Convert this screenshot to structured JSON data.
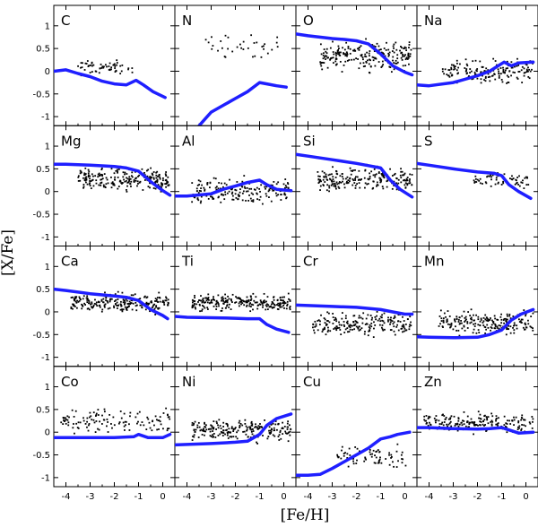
{
  "figure": {
    "xlabel": "[Fe/H]",
    "ylabel": "[X/Fe]",
    "model_color": "#1f1fff",
    "point_color": "#000000"
  },
  "chart_data": {
    "type": "scatter",
    "xlim": [
      -4.5,
      0.5
    ],
    "ylim": [
      -1.2,
      1.45
    ],
    "xticks": [
      "-4",
      "-3",
      "-2",
      "-1",
      "0"
    ],
    "xtick_values": [
      -4,
      -3,
      -2,
      -1,
      0
    ],
    "yticks": [
      "-1",
      "-0.5",
      "0",
      "0.5",
      "1"
    ],
    "ytick_values": [
      -1,
      -0.5,
      0,
      0.5,
      1
    ],
    "panels": [
      {
        "element": "C",
        "model": [
          [
            -4.5,
            0.0
          ],
          [
            -4,
            0.03
          ],
          [
            -3.5,
            -0.05
          ],
          [
            -3,
            -0.12
          ],
          [
            -2.5,
            -0.22
          ],
          [
            -2,
            -0.28
          ],
          [
            -1.5,
            -0.3
          ],
          [
            -1.1,
            -0.2
          ],
          [
            -0.8,
            -0.3
          ],
          [
            -0.4,
            -0.45
          ],
          [
            0.1,
            -0.58
          ]
        ],
        "obs": {
          "x": [
            -3.6,
            -1.2
          ],
          "y": [
            -0.15,
            0.3
          ],
          "n": 60
        }
      },
      {
        "element": "N",
        "model": [
          [
            -3.5,
            -1.2
          ],
          [
            -3,
            -0.9
          ],
          [
            -2.5,
            -0.75
          ],
          [
            -2,
            -0.6
          ],
          [
            -1.5,
            -0.45
          ],
          [
            -1,
            -0.25
          ],
          [
            -0.7,
            -0.28
          ],
          [
            -0.3,
            -0.32
          ],
          [
            0.1,
            -0.35
          ]
        ],
        "obs": {
          "x": [
            -3.3,
            -0.2
          ],
          "y": [
            0.2,
            0.9
          ],
          "n": 35
        }
      },
      {
        "element": "O",
        "model": [
          [
            -4.5,
            0.82
          ],
          [
            -4,
            0.78
          ],
          [
            -3,
            0.72
          ],
          [
            -2.5,
            0.7
          ],
          [
            -2,
            0.67
          ],
          [
            -1.5,
            0.6
          ],
          [
            -1,
            0.38
          ],
          [
            -0.5,
            0.12
          ],
          [
            0,
            -0.02
          ],
          [
            0.3,
            -0.08
          ]
        ],
        "obs": {
          "x": [
            -3.5,
            0.3
          ],
          "y": [
            -0.1,
            0.8
          ],
          "n": 220
        }
      },
      {
        "element": "Na",
        "model": [
          [
            -4.5,
            -0.3
          ],
          [
            -4,
            -0.32
          ],
          [
            -3,
            -0.25
          ],
          [
            -2,
            -0.1
          ],
          [
            -1.5,
            0.0
          ],
          [
            -1.2,
            0.1
          ],
          [
            -0.9,
            0.2
          ],
          [
            -0.6,
            0.12
          ],
          [
            -0.3,
            0.18
          ],
          [
            0.3,
            0.2
          ]
        ],
        "obs": {
          "x": [
            -3.5,
            0.3
          ],
          "y": [
            -0.35,
            0.35
          ],
          "n": 160
        }
      },
      {
        "element": "Mg",
        "model": [
          [
            -4.5,
            0.6
          ],
          [
            -4,
            0.6
          ],
          [
            -3,
            0.58
          ],
          [
            -2,
            0.55
          ],
          [
            -1.5,
            0.52
          ],
          [
            -1,
            0.45
          ],
          [
            -0.5,
            0.22
          ],
          [
            0,
            0.02
          ],
          [
            0.3,
            -0.08
          ]
        ],
        "obs": {
          "x": [
            -3.5,
            0.3
          ],
          "y": [
            -0.1,
            0.6
          ],
          "n": 230
        }
      },
      {
        "element": "Al",
        "model": [
          [
            -4.5,
            -0.1
          ],
          [
            -4,
            -0.1
          ],
          [
            -3,
            -0.05
          ],
          [
            -2.5,
            0.05
          ],
          [
            -2,
            0.12
          ],
          [
            -1.5,
            0.2
          ],
          [
            -1,
            0.25
          ],
          [
            -0.7,
            0.15
          ],
          [
            -0.3,
            0.05
          ],
          [
            0.3,
            0.02
          ]
        ],
        "obs": {
          "x": [
            -3.8,
            0.3
          ],
          "y": [
            -0.4,
            0.4
          ],
          "n": 180
        }
      },
      {
        "element": "Si",
        "model": [
          [
            -4.5,
            0.82
          ],
          [
            -4,
            0.78
          ],
          [
            -3,
            0.7
          ],
          [
            -2,
            0.62
          ],
          [
            -1.5,
            0.57
          ],
          [
            -1,
            0.52
          ],
          [
            -0.6,
            0.25
          ],
          [
            -0.2,
            0.05
          ],
          [
            0.3,
            -0.12
          ]
        ],
        "obs": {
          "x": [
            -3.6,
            0.3
          ],
          "y": [
            -0.1,
            0.65
          ],
          "n": 220
        }
      },
      {
        "element": "S",
        "model": [
          [
            -4.5,
            0.62
          ],
          [
            -4,
            0.58
          ],
          [
            -3,
            0.5
          ],
          [
            -2,
            0.43
          ],
          [
            -1.3,
            0.4
          ],
          [
            -1,
            0.35
          ],
          [
            -0.7,
            0.15
          ],
          [
            -0.3,
            0.0
          ],
          [
            0.2,
            -0.15
          ]
        ],
        "obs": {
          "x": [
            -2.2,
            0.2
          ],
          "y": [
            0.0,
            0.5
          ],
          "n": 60
        }
      },
      {
        "element": "Ca",
        "model": [
          [
            -4.5,
            0.5
          ],
          [
            -4,
            0.47
          ],
          [
            -3,
            0.4
          ],
          [
            -2,
            0.35
          ],
          [
            -1.5,
            0.32
          ],
          [
            -1,
            0.25
          ],
          [
            -0.5,
            0.05
          ],
          [
            0,
            -0.08
          ],
          [
            0.2,
            -0.15
          ]
        ],
        "obs": {
          "x": [
            -3.8,
            0.3
          ],
          "y": [
            -0.1,
            0.5
          ],
          "n": 230
        }
      },
      {
        "element": "Ti",
        "model": [
          [
            -4.5,
            -0.1
          ],
          [
            -4,
            -0.12
          ],
          [
            -3,
            -0.13
          ],
          [
            -2,
            -0.14
          ],
          [
            -1.5,
            -0.15
          ],
          [
            -1,
            -0.15
          ],
          [
            -0.7,
            -0.28
          ],
          [
            -0.3,
            -0.38
          ],
          [
            0.2,
            -0.45
          ]
        ],
        "obs": {
          "x": [
            -3.8,
            0.3
          ],
          "y": [
            -0.05,
            0.45
          ],
          "n": 240
        }
      },
      {
        "element": "Cr",
        "model": [
          [
            -4.5,
            0.15
          ],
          [
            -4,
            0.14
          ],
          [
            -3,
            0.12
          ],
          [
            -2,
            0.1
          ],
          [
            -1,
            0.05
          ],
          [
            -0.5,
            0.0
          ],
          [
            0,
            -0.05
          ],
          [
            0.3,
            -0.05
          ]
        ],
        "obs": {
          "x": [
            -3.8,
            0.3
          ],
          "y": [
            -0.6,
            0.1
          ],
          "n": 200
        }
      },
      {
        "element": "Mn",
        "model": [
          [
            -4.5,
            -0.55
          ],
          [
            -4,
            -0.56
          ],
          [
            -3,
            -0.57
          ],
          [
            -2,
            -0.56
          ],
          [
            -1.5,
            -0.5
          ],
          [
            -1,
            -0.4
          ],
          [
            -0.6,
            -0.18
          ],
          [
            -0.2,
            -0.05
          ],
          [
            0.3,
            0.05
          ]
        ],
        "obs": {
          "x": [
            -3.6,
            0.3
          ],
          "y": [
            -0.6,
            0.1
          ],
          "n": 200
        }
      },
      {
        "element": "Co",
        "model": [
          [
            -4.5,
            -0.12
          ],
          [
            -4,
            -0.12
          ],
          [
            -3,
            -0.12
          ],
          [
            -2,
            -0.12
          ],
          [
            -1.2,
            -0.1
          ],
          [
            -1,
            -0.05
          ],
          [
            -0.6,
            -0.12
          ],
          [
            0,
            -0.12
          ],
          [
            0.3,
            -0.05
          ]
        ],
        "obs": {
          "x": [
            -4.2,
            0.3
          ],
          "y": [
            -0.1,
            0.6
          ],
          "n": 120
        }
      },
      {
        "element": "Ni",
        "model": [
          [
            -4.5,
            -0.28
          ],
          [
            -4,
            -0.27
          ],
          [
            -3,
            -0.25
          ],
          [
            -2,
            -0.22
          ],
          [
            -1.5,
            -0.2
          ],
          [
            -1,
            -0.05
          ],
          [
            -0.7,
            0.15
          ],
          [
            -0.3,
            0.3
          ],
          [
            0.3,
            0.4
          ]
        ],
        "obs": {
          "x": [
            -3.8,
            0.3
          ],
          "y": [
            -0.3,
            0.4
          ],
          "n": 220
        }
      },
      {
        "element": "Cu",
        "model": [
          [
            -4.5,
            -0.95
          ],
          [
            -4,
            -0.95
          ],
          [
            -3.5,
            -0.93
          ],
          [
            -3,
            -0.8
          ],
          [
            -2.5,
            -0.65
          ],
          [
            -2,
            -0.5
          ],
          [
            -1.5,
            -0.35
          ],
          [
            -1,
            -0.15
          ],
          [
            -0.6,
            -0.1
          ],
          [
            -0.3,
            -0.05
          ],
          [
            0.2,
            0.0
          ]
        ],
        "obs": {
          "x": [
            -2.8,
            0.1
          ],
          "y": [
            -0.9,
            -0.2
          ],
          "n": 70
        }
      },
      {
        "element": "Zn",
        "model": [
          [
            -4.5,
            0.1
          ],
          [
            -4,
            0.1
          ],
          [
            -3,
            0.08
          ],
          [
            -2,
            0.07
          ],
          [
            -1.5,
            0.08
          ],
          [
            -1,
            0.1
          ],
          [
            -0.7,
            0.05
          ],
          [
            -0.3,
            -0.02
          ],
          [
            0.3,
            0.0
          ]
        ],
        "obs": {
          "x": [
            -4.2,
            0.3
          ],
          "y": [
            -0.1,
            0.5
          ],
          "n": 200
        }
      }
    ]
  }
}
